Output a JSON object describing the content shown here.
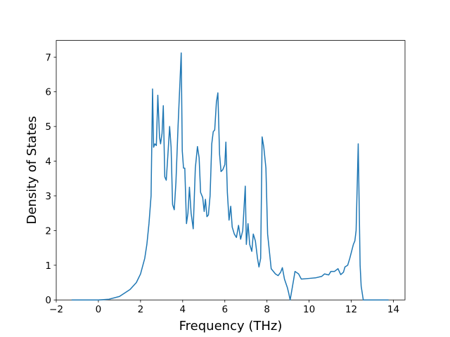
{
  "chart_data": {
    "type": "line",
    "xlabel": "Frequency (THz)",
    "ylabel": "Density of States",
    "color": "#1f77b4",
    "x": [
      -1.27,
      0,
      0.5,
      1.0,
      1.5,
      1.8,
      2.0,
      2.2,
      2.3,
      2.4,
      2.5,
      2.57,
      2.62,
      2.68,
      2.75,
      2.82,
      2.9,
      2.95,
      3.02,
      3.08,
      3.15,
      3.22,
      3.3,
      3.38,
      3.45,
      3.52,
      3.6,
      3.68,
      3.78,
      3.93,
      3.98,
      4.04,
      4.1,
      4.18,
      4.25,
      4.32,
      4.4,
      4.5,
      4.6,
      4.7,
      4.78,
      4.85,
      4.95,
      5.02,
      5.08,
      5.15,
      5.22,
      5.3,
      5.38,
      5.45,
      5.52,
      5.6,
      5.67,
      5.75,
      5.82,
      5.9,
      6.0,
      6.05,
      6.12,
      6.2,
      6.28,
      6.35,
      6.45,
      6.55,
      6.65,
      6.75,
      6.85,
      6.97,
      7.02,
      7.1,
      7.18,
      7.28,
      7.35,
      7.45,
      7.55,
      7.62,
      7.7,
      7.77,
      7.85,
      7.95,
      8.03,
      8.2,
      8.4,
      8.53,
      8.65,
      8.73,
      8.83,
      8.97,
      9.03,
      9.1,
      9.27,
      9.33,
      9.5,
      9.63,
      10.0,
      10.33,
      10.6,
      10.73,
      10.93,
      11.03,
      11.2,
      11.37,
      11.5,
      11.63,
      11.7,
      11.83,
      11.93,
      12.1,
      12.17,
      12.23,
      12.33,
      12.42,
      12.47,
      12.57,
      13.77
    ],
    "values": [
      0,
      0,
      0.02,
      0.1,
      0.3,
      0.5,
      0.75,
      1.2,
      1.6,
      2.2,
      3.0,
      6.08,
      4.4,
      4.5,
      4.45,
      5.9,
      4.7,
      4.5,
      4.8,
      5.6,
      3.55,
      3.45,
      4.2,
      5.0,
      4.4,
      2.75,
      2.6,
      3.4,
      5.0,
      7.12,
      4.3,
      3.8,
      3.8,
      2.2,
      2.5,
      3.25,
      2.5,
      2.05,
      3.8,
      4.42,
      4.1,
      3.1,
      2.95,
      2.55,
      2.9,
      2.4,
      2.45,
      3.0,
      4.5,
      4.85,
      4.9,
      5.7,
      5.97,
      4.2,
      3.7,
      3.75,
      3.9,
      4.55,
      3.1,
      2.3,
      2.7,
      2.1,
      1.9,
      1.8,
      2.15,
      1.75,
      2.0,
      3.28,
      1.6,
      2.2,
      1.6,
      1.4,
      1.9,
      1.7,
      1.2,
      0.95,
      1.2,
      4.7,
      4.4,
      3.8,
      1.9,
      0.9,
      0.75,
      0.7,
      0.8,
      0.93,
      0.6,
      0.35,
      0.2,
      0.0,
      0.6,
      0.82,
      0.75,
      0.6,
      0.62,
      0.64,
      0.68,
      0.75,
      0.72,
      0.82,
      0.82,
      0.9,
      0.73,
      0.8,
      0.95,
      1.0,
      1.2,
      1.6,
      1.7,
      2.0,
      4.5,
      1.0,
      0.4,
      0,
      0
    ],
    "xlim": [
      -2.0,
      14.55
    ],
    "ylim": [
      0,
      7.48
    ],
    "xticks": [
      {
        "value": -2,
        "label": "−2"
      },
      0,
      2,
      4,
      6,
      8,
      10,
      12,
      14
    ],
    "yticks": [
      0,
      1,
      2,
      3,
      4,
      5,
      6,
      7
    ]
  }
}
